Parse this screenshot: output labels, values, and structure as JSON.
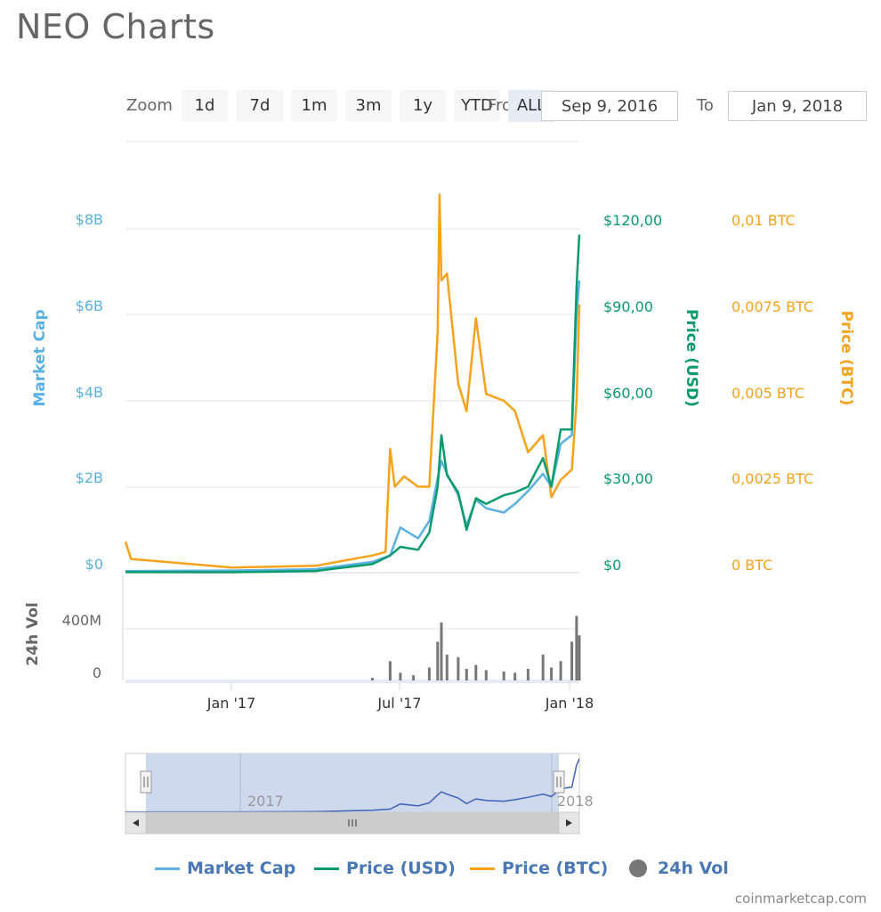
{
  "title": "NEO Charts",
  "zoom": {
    "label": "Zoom",
    "buttons": [
      "1d",
      "7d",
      "1m",
      "3m",
      "1y",
      "YTD",
      "ALL"
    ],
    "active": "ALL"
  },
  "range": {
    "from_label": "From",
    "from_value": "Sep 9, 2016",
    "to_label": "To",
    "to_value": "Jan 9, 2018"
  },
  "credits": "coinmarketcap.com",
  "colors": {
    "market_cap": "#5bb1e2",
    "price_usd": "#0b9b6b",
    "price_btc": "#f7a21b",
    "volume": "#777777",
    "navigator_fill": "#c7d2ea"
  },
  "chart_data": {
    "type": "line",
    "x_range": [
      "2016-09-09",
      "2018-01-09"
    ],
    "axes": {
      "market_cap": {
        "title": "Market Cap",
        "ticks": [
          "$0",
          "$2B",
          "$4B",
          "$6B",
          "$8B"
        ],
        "range": [
          0,
          8000000000
        ]
      },
      "price_usd": {
        "title": "Price (USD)",
        "ticks": [
          "$0",
          "$30,00",
          "$60,00",
          "$90,00",
          "$120,00"
        ],
        "range": [
          0,
          120
        ]
      },
      "price_btc": {
        "title": "Price (BTC)",
        "ticks": [
          "0 BTC",
          "0,0025 BTC",
          "0,005 BTC",
          "0,0075 BTC",
          "0,01 BTC"
        ],
        "range": [
          0,
          0.01
        ]
      },
      "volume": {
        "title": "24h Vol",
        "ticks": [
          "0",
          "400M"
        ],
        "range": [
          0,
          400000000
        ]
      },
      "x_ticks": [
        "Jan '17",
        "Jul '17",
        "Jan '18"
      ],
      "navigator_ticks": [
        "2017",
        "2018"
      ]
    },
    "series": [
      {
        "name": "Market Cap",
        "x": [
          "2016-09-09",
          "2017-01-01",
          "2017-04-01",
          "2017-06-01",
          "2017-06-20",
          "2017-07-01",
          "2017-07-20",
          "2017-08-01",
          "2017-08-10",
          "2017-08-14",
          "2017-08-20",
          "2017-09-01",
          "2017-09-10",
          "2017-09-20",
          "2017-10-01",
          "2017-10-20",
          "2017-11-01",
          "2017-11-15",
          "2017-12-01",
          "2017-12-10",
          "2017-12-20",
          "2018-01-01",
          "2018-01-06",
          "2018-01-09"
        ],
        "values": [
          40000000,
          50000000,
          80000000,
          250000000,
          400000000,
          1050000000,
          800000000,
          1200000000,
          2200000000,
          2600000000,
          2300000000,
          1800000000,
          1100000000,
          1700000000,
          1500000000,
          1400000000,
          1600000000,
          1900000000,
          2300000000,
          2000000000,
          3000000000,
          3200000000,
          6000000000,
          6800000000
        ]
      },
      {
        "name": "Price (USD)",
        "x": [
          "2016-09-09",
          "2017-01-01",
          "2017-04-01",
          "2017-06-01",
          "2017-06-20",
          "2017-07-01",
          "2017-07-20",
          "2017-08-01",
          "2017-08-10",
          "2017-08-14",
          "2017-08-20",
          "2017-09-01",
          "2017-09-10",
          "2017-09-20",
          "2017-10-01",
          "2017-10-20",
          "2017-11-01",
          "2017-11-15",
          "2017-12-01",
          "2017-12-10",
          "2017-12-20",
          "2018-01-01",
          "2018-01-06",
          "2018-01-09"
        ],
        "values": [
          0.2,
          0.15,
          0.6,
          3,
          6,
          9,
          8,
          14,
          30,
          48,
          34,
          28,
          15,
          26,
          24,
          27,
          28,
          30,
          40,
          30,
          50,
          50,
          100,
          118
        ]
      },
      {
        "name": "Price (BTC)",
        "x": [
          "2016-09-09",
          "2016-09-15",
          "2017-01-01",
          "2017-04-01",
          "2017-06-01",
          "2017-06-15",
          "2017-06-20",
          "2017-06-25",
          "2017-07-05",
          "2017-07-20",
          "2017-08-01",
          "2017-08-10",
          "2017-08-12",
          "2017-08-14",
          "2017-08-20",
          "2017-09-01",
          "2017-09-10",
          "2017-09-20",
          "2017-10-01",
          "2017-10-20",
          "2017-11-01",
          "2017-11-15",
          "2017-12-01",
          "2017-12-10",
          "2017-12-20",
          "2018-01-01",
          "2018-01-06",
          "2018-01-09"
        ],
        "values": [
          0.0009,
          0.0004,
          0.00015,
          0.0002,
          0.0005,
          0.0006,
          0.0036,
          0.0025,
          0.0028,
          0.0025,
          0.0025,
          0.007,
          0.011,
          0.0085,
          0.0087,
          0.0055,
          0.0047,
          0.0074,
          0.0052,
          0.005,
          0.0047,
          0.0035,
          0.004,
          0.0022,
          0.0027,
          0.003,
          0.005,
          0.0078
        ]
      },
      {
        "name": "24h Vol",
        "x": [
          "2017-06-01",
          "2017-06-20",
          "2017-07-01",
          "2017-07-15",
          "2017-08-01",
          "2017-08-10",
          "2017-08-14",
          "2017-08-20",
          "2017-09-01",
          "2017-09-10",
          "2017-09-20",
          "2017-10-01",
          "2017-10-20",
          "2017-11-01",
          "2017-11-15",
          "2017-12-01",
          "2017-12-10",
          "2017-12-20",
          "2018-01-01",
          "2018-01-06",
          "2018-01-09"
        ],
        "values": [
          20000000,
          150000000,
          60000000,
          40000000,
          100000000,
          300000000,
          450000000,
          200000000,
          180000000,
          90000000,
          120000000,
          80000000,
          70000000,
          60000000,
          90000000,
          200000000,
          100000000,
          150000000,
          300000000,
          500000000,
          350000000
        ]
      }
    ]
  },
  "legend": [
    {
      "name": "Market Cap",
      "kind": "line",
      "color": "#5bb1e2"
    },
    {
      "name": "Price (USD)",
      "kind": "line",
      "color": "#0b9b6b"
    },
    {
      "name": "Price (BTC)",
      "kind": "line",
      "color": "#f7a21b"
    },
    {
      "name": "24h Vol",
      "kind": "dot",
      "color": "#777777"
    }
  ]
}
